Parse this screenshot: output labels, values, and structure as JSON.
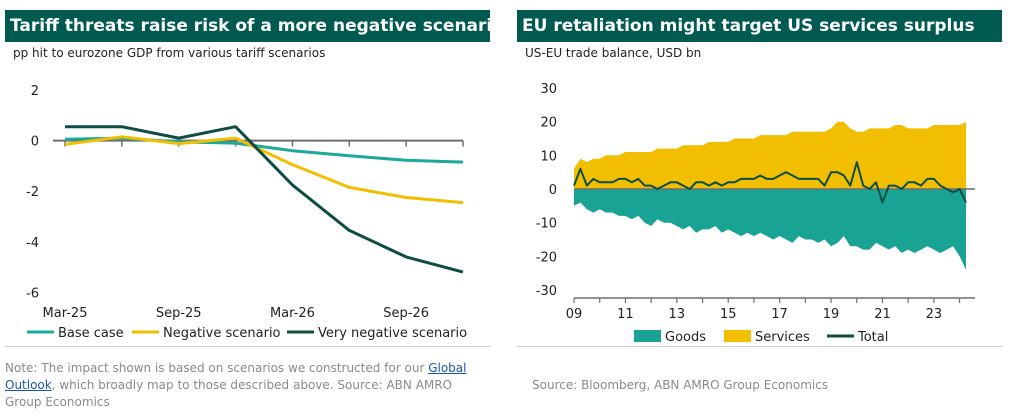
{
  "left": {
    "title": "Tariff threats raise risk of a more negative scenario",
    "subtitle": "pp hit to eurozone GDP from various tariff scenarios",
    "note_prefix": "Note: The impact shown is based on scenarios we constructed for our ",
    "note_link": "Global Outlook",
    "note_suffix": ", which broadly map to those described above. Source: ABN AMRO Group Economics"
  },
  "right": {
    "title": "EU retaliation might target US services surplus",
    "subtitle": "US-EU trade balance, USD bn",
    "source": "Source: Bloomberg, ABN AMRO Group Economics"
  },
  "colors": {
    "header": "#005a4f",
    "teal": "#1aa99a",
    "yellow": "#f2be00",
    "dark": "#0d4d44",
    "green_area": "#19a394"
  },
  "chart_data": [
    {
      "type": "line",
      "x": [
        "Mar-25",
        "Jun-25",
        "Sep-25",
        "Dec-25",
        "Mar-26",
        "Jun-26",
        "Sep-26",
        "Dec-26"
      ],
      "xticks": [
        "Mar-25",
        "Sep-25",
        "Mar-26",
        "Sep-26"
      ],
      "yticks": [
        "2",
        "0",
        "-2",
        "-4",
        "-6"
      ],
      "ylim": [
        -6.5,
        2
      ],
      "series": [
        {
          "name": "Base case",
          "color": "#1aa99a",
          "values": [
            0.05,
            0.1,
            -0.05,
            -0.1,
            -0.4,
            -0.6,
            -0.78,
            -0.85
          ]
        },
        {
          "name": "Negative scenario",
          "color": "#f2be00",
          "values": [
            -0.15,
            0.15,
            -0.12,
            0.1,
            -0.95,
            -1.85,
            -2.25,
            -2.45
          ]
        },
        {
          "name": "Very negative scenario",
          "color": "#0d4d44",
          "values": [
            0.55,
            0.55,
            0.1,
            0.55,
            -1.75,
            -3.55,
            -4.6,
            -5.2
          ]
        }
      ]
    },
    {
      "type": "area",
      "xticks": [
        "09",
        "11",
        "13",
        "15",
        "17",
        "19",
        "21",
        "23"
      ],
      "yticks": [
        "30",
        "20",
        "10",
        "0",
        "-10",
        "-20",
        "-30"
      ],
      "xlim": [
        2009,
        2024.6
      ],
      "ylim": [
        -30,
        30
      ],
      "x_start": 2009,
      "x_step": 0.25,
      "series": [
        {
          "name": "Goods",
          "color": "#19a394",
          "values": [
            -5,
            -4,
            -6,
            -7,
            -6,
            -7,
            -7,
            -8,
            -8,
            -9,
            -8,
            -10,
            -11,
            -9,
            -10,
            -10,
            -11,
            -12,
            -11,
            -13,
            -12,
            -12,
            -11,
            -13,
            -12,
            -13,
            -14,
            -13,
            -14,
            -13,
            -14,
            -15,
            -14,
            -15,
            -16,
            -14,
            -15,
            -15,
            -16,
            -15,
            -17,
            -16,
            -14,
            -17,
            -17,
            -18,
            -18,
            -16,
            -17,
            -18,
            -17,
            -19,
            -18,
            -19,
            -18,
            -17,
            -18,
            -19,
            -18,
            -17,
            -20,
            -24
          ]
        },
        {
          "name": "Services",
          "color": "#f2be00",
          "values": [
            6,
            9,
            8,
            9,
            9,
            10,
            10,
            10,
            11,
            11,
            11,
            11,
            11,
            12,
            12,
            12,
            12,
            13,
            13,
            13,
            13,
            14,
            14,
            14,
            14,
            15,
            15,
            15,
            15,
            16,
            16,
            16,
            16,
            16,
            17,
            17,
            17,
            17,
            17,
            17,
            18,
            20,
            20,
            18,
            17,
            17,
            18,
            18,
            18,
            18,
            19,
            19,
            18,
            18,
            18,
            18,
            19,
            19,
            19,
            19,
            19,
            20
          ]
        },
        {
          "name": "Total",
          "color": "#0d4d44",
          "values": [
            1,
            6,
            1,
            3,
            2,
            2,
            2,
            3,
            3,
            2,
            3,
            1,
            1,
            0,
            1,
            2,
            2,
            1,
            0,
            2,
            2,
            1,
            2,
            1,
            2,
            2,
            3,
            3,
            3,
            4,
            3,
            3,
            4,
            5,
            4,
            3,
            3,
            3,
            3,
            1,
            5,
            5,
            4,
            1,
            8,
            1,
            0,
            2,
            -4,
            1,
            1,
            0,
            2,
            2,
            1,
            3,
            3,
            1,
            0,
            -1,
            0,
            -4
          ]
        }
      ]
    }
  ]
}
